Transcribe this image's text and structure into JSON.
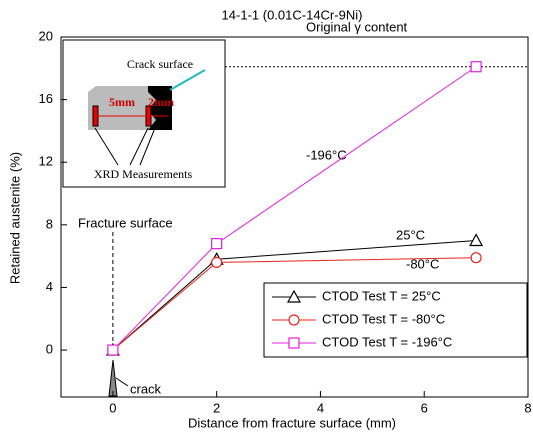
{
  "chart_data": {
    "type": "line",
    "title": "14-1-1 (0.01C-14Cr-9Ni)",
    "x_label": "Distance from fracture surface (mm)",
    "y_label": "Retained austenite (%)",
    "x": [
      0,
      2,
      7
    ],
    "series": [
      {
        "name": "CTOD Test T = 25°C",
        "color": "#000000",
        "marker": "triangle",
        "values": [
          0,
          5.8,
          7.0
        ]
      },
      {
        "name": "CTOD Test T = -80°C",
        "color": "#e8241c",
        "marker": "circle",
        "values": [
          0,
          5.6,
          5.9
        ]
      },
      {
        "name": "CTOD Test T = -196°C",
        "color": "#e020e0",
        "marker": "square",
        "values": [
          0,
          6.8,
          18.1
        ]
      }
    ],
    "xlim": [
      -1,
      8
    ],
    "xticks": [
      0,
      2,
      4,
      6,
      8
    ],
    "ylim": [
      -3,
      20
    ],
    "yticks": [
      0,
      4,
      8,
      12,
      16,
      20
    ],
    "reference_line": {
      "label": "Original γ content",
      "y": 18.1
    },
    "fracture_line": {
      "label": "Fracture surface",
      "x": 0
    },
    "annotations": [
      "-196°C",
      "25°C",
      "-80°C",
      "crack"
    ],
    "inset": {
      "crack_label": "Crack surface",
      "distance_1": "5mm",
      "distance_2": "2mm",
      "caption": "XRD Measurements"
    }
  }
}
